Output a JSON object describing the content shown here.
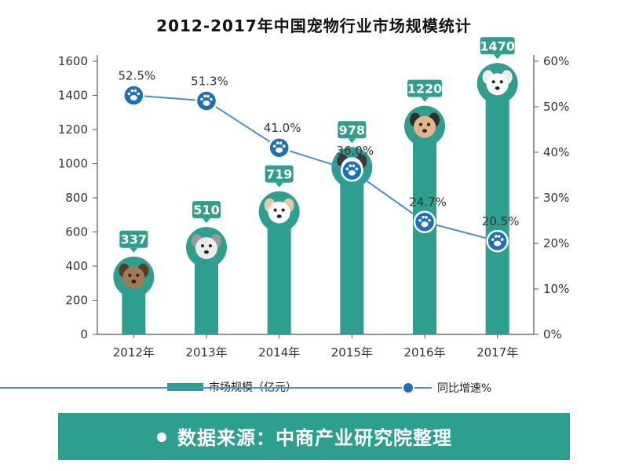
{
  "chart_data": {
    "type": "bar",
    "title": "2012-2017年中国宠物行业市场规模统计",
    "categories": [
      "2012年",
      "2013年",
      "2014年",
      "2015年",
      "2016年",
      "2017年"
    ],
    "series": [
      {
        "name": "市场规模（亿元）",
        "type": "bar",
        "axis": "left",
        "values": [
          337,
          510,
          719,
          978,
          1220,
          1470
        ]
      },
      {
        "name": "同比增速%",
        "type": "line",
        "axis": "right",
        "values": [
          52.5,
          51.3,
          41.0,
          36.0,
          24.7,
          20.5
        ]
      }
    ],
    "value_labels": [
      "337",
      "510",
      "719",
      "978",
      "1220",
      "1470"
    ],
    "pct_labels": [
      "52.5%",
      "51.3%",
      "41.0%",
      "36.0%",
      "24.7%",
      "20.5%"
    ],
    "left_axis": {
      "ylim": [
        0,
        1600
      ],
      "ticks": [
        "0",
        "200",
        "400",
        "600",
        "800",
        "1000",
        "1200",
        "1400",
        "1600"
      ]
    },
    "right_axis": {
      "ylim": [
        0,
        60
      ],
      "ticks": [
        "0%",
        "10%",
        "20%",
        "30%",
        "40%",
        "50%",
        "60%"
      ]
    },
    "legend_position": "bottom",
    "grid": false,
    "source_note": "数据来源：中商产业研究院整理"
  },
  "colors": {
    "bar": "#2e9e8e",
    "line": "#4a8fc8",
    "marker": "#1e6fb8",
    "axis": "#555555",
    "banner": "#2e9e8e"
  }
}
